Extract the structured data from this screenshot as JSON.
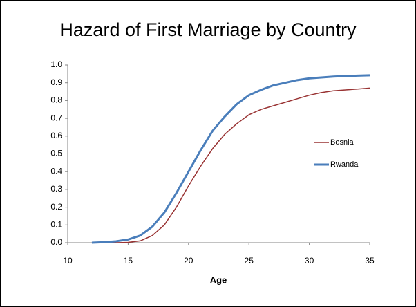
{
  "chart_data": {
    "type": "line",
    "title": "Hazard of First Marriage by Country",
    "xlabel": "Age",
    "x": [
      12,
      13,
      14,
      15,
      16,
      17,
      18,
      19,
      20,
      21,
      22,
      23,
      24,
      25,
      26,
      27,
      28,
      29,
      30,
      31,
      32,
      33,
      34,
      35
    ],
    "series": [
      {
        "name": "Bosnia",
        "color": "#993333",
        "width": 1.5,
        "values": [
          0,
          0,
          0,
          0.002,
          0.01,
          0.04,
          0.1,
          0.2,
          0.32,
          0.43,
          0.53,
          0.61,
          0.67,
          0.72,
          0.75,
          0.77,
          0.79,
          0.81,
          0.83,
          0.845,
          0.855,
          0.86,
          0.865,
          0.87
        ]
      },
      {
        "name": "Rwanda",
        "color": "#4a7ebb",
        "width": 3,
        "values": [
          0,
          0.003,
          0.008,
          0.018,
          0.04,
          0.09,
          0.17,
          0.28,
          0.4,
          0.52,
          0.63,
          0.71,
          0.78,
          0.83,
          0.86,
          0.885,
          0.9,
          0.915,
          0.925,
          0.93,
          0.935,
          0.938,
          0.94,
          0.942
        ]
      }
    ],
    "xlim": [
      10,
      35
    ],
    "xticks": [
      10,
      15,
      20,
      25,
      30,
      35
    ],
    "ylim": [
      0,
      1
    ],
    "yticks": [
      {
        "value": 0,
        "label": "0.0"
      },
      0.1,
      0.2,
      0.3,
      0.4,
      0.5,
      0.6,
      0.7,
      0.8,
      0.9,
      {
        "value": 1,
        "label": "1.0"
      }
    ],
    "legend": "right"
  }
}
